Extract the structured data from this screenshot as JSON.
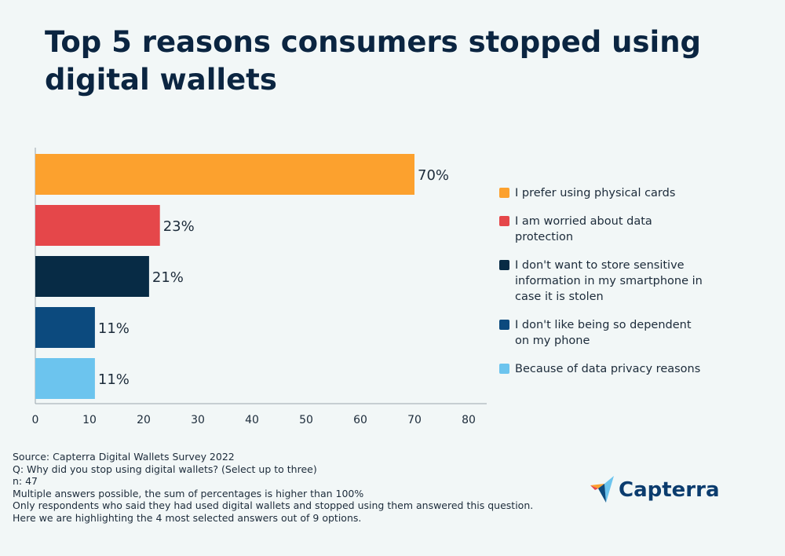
{
  "title": "Top 5 reasons consumers stopped using digital wallets",
  "chart_data": {
    "type": "bar",
    "orientation": "horizontal",
    "title": "Top 5 reasons consumers stopped using digital wallets",
    "categories": [
      "I prefer using physical cards",
      "I am worried about data protection",
      "I don't want to store sensitive information in my smartphone in case it is stolen",
      "I don't like being so dependent on my phone",
      "Because of data privacy reasons"
    ],
    "values": [
      70,
      23,
      21,
      11,
      11
    ],
    "data_labels": [
      "70%",
      "23%",
      "21%",
      "11%",
      "11%"
    ],
    "colors": [
      "#fca12e",
      "#e5474a",
      "#072b45",
      "#0c4a7e",
      "#6cc4ee"
    ],
    "xlim": [
      0,
      80
    ],
    "xticks": [
      "0",
      "10",
      "20",
      "30",
      "40",
      "50",
      "60",
      "70",
      "80"
    ],
    "grid": false,
    "legend_position": "right"
  },
  "notes": [
    "Source: Capterra Digital Wallets Survey 2022",
    "Q: Why did you stop using digital wallets? (Select up to three)",
    "n: 47",
    "Multiple answers possible, the sum of percentages is higher than 100%",
    "Only respondents who said they had used digital wallets and stopped using them answered this question.",
    "Here we are highlighting the 4 most selected answers out of 9 options."
  ],
  "logo": {
    "text": "Capterra"
  }
}
